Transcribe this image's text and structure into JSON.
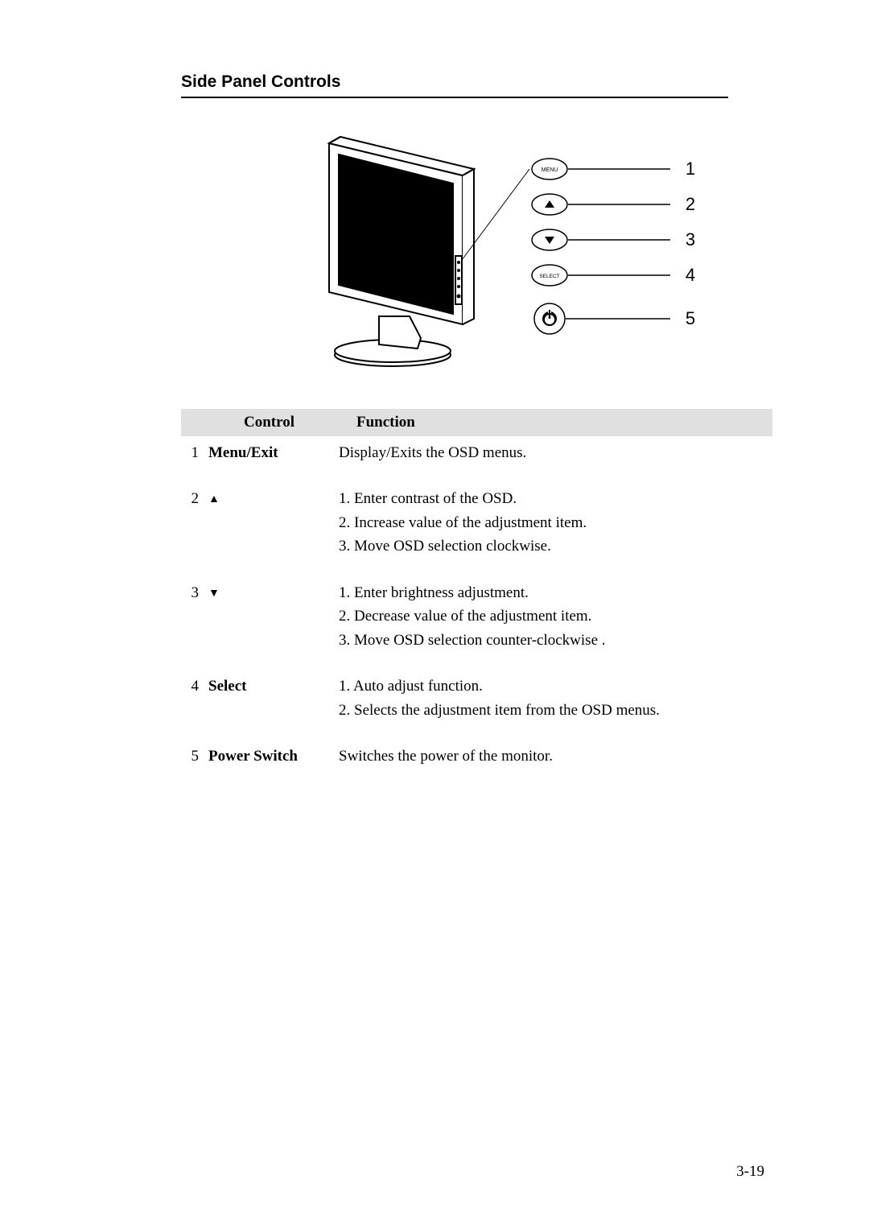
{
  "section_title": "Side Panel Controls",
  "page_number": "3-19",
  "table": {
    "header": {
      "control": "Control",
      "function": "Function"
    },
    "rows": [
      {
        "num": "1",
        "control_text": "Menu/Exit",
        "control_symbol": null,
        "function_lines": [
          "Display/Exits the OSD menus."
        ]
      },
      {
        "num": "2",
        "control_text": "",
        "control_symbol": "▲",
        "function_lines": [
          "1.  Enter contrast of the OSD.",
          "2.  Increase value of the adjustment item.",
          "3.  Move OSD selection clockwise."
        ]
      },
      {
        "num": "3",
        "control_text": "",
        "control_symbol": "▼",
        "function_lines": [
          "1.  Enter brightness adjustment.",
          "2.  Decrease value of the adjustment item.",
          "3.  Move OSD selection counter-clockwise ."
        ]
      },
      {
        "num": "4",
        "control_text": "Select",
        "control_symbol": null,
        "function_lines": [
          "1.  Auto adjust function.",
          "2.  Selects the adjustment item from the OSD menus."
        ]
      },
      {
        "num": "5",
        "control_text": "Power Switch",
        "control_symbol": null,
        "function_lines": [
          "Switches the power of the monitor."
        ]
      }
    ]
  },
  "diagram": {
    "callouts": [
      "1",
      "2",
      "3",
      "4",
      "5"
    ],
    "buttons": {
      "menu_label": "MENU",
      "select_label": "SELECT"
    }
  }
}
